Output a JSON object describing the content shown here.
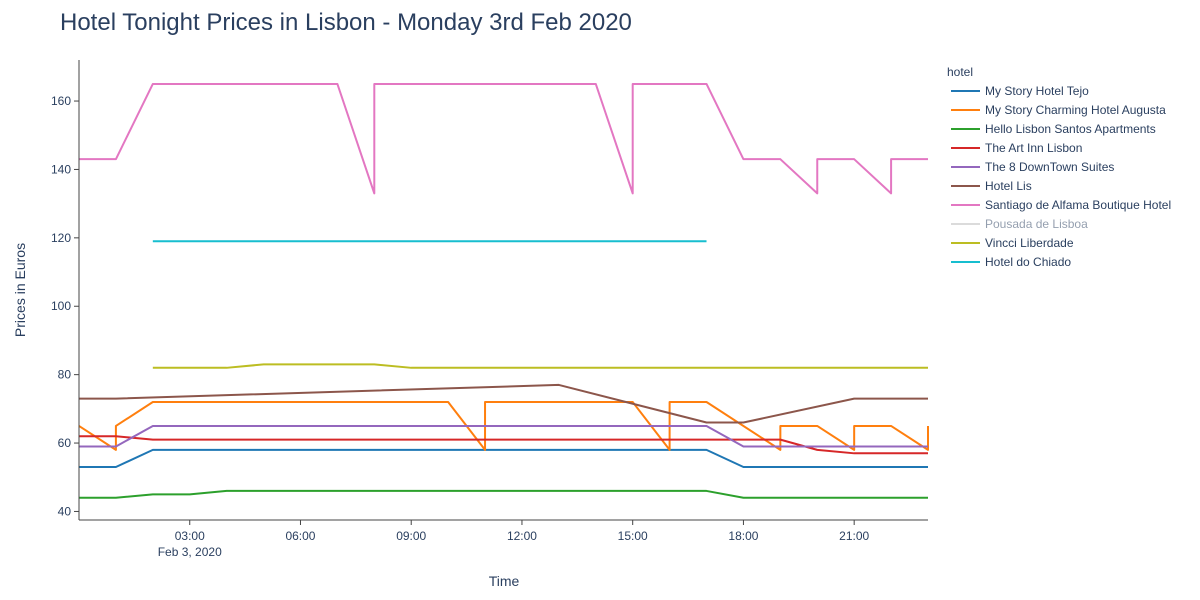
{
  "chart_data": {
    "type": "line",
    "title": "Hotel Tonight Prices in Lisbon - Monday 3rd Feb 2020",
    "xlabel": "Time",
    "ylabel": "Prices in Euros",
    "x_range": [
      "00:00",
      "23:00"
    ],
    "ylim": [
      37.5,
      172
    ],
    "x_ticks": [
      "03:00",
      "06:00",
      "09:00",
      "12:00",
      "15:00",
      "18:00",
      "21:00"
    ],
    "x_tick_hours": [
      3,
      6,
      9,
      12,
      15,
      18,
      21
    ],
    "x_date_label": "Feb 3, 2020",
    "y_ticks": [
      40,
      60,
      80,
      100,
      120,
      140,
      160
    ],
    "legend_title": "hotel",
    "legend_position": "right",
    "grid": false,
    "series": [
      {
        "name": "My Story Hotel Tejo",
        "color": "#1f77b4",
        "points": [
          [
            0,
            53
          ],
          [
            1,
            53
          ],
          [
            2,
            58
          ],
          [
            17,
            58
          ],
          [
            18,
            53
          ],
          [
            23,
            53
          ]
        ]
      },
      {
        "name": "My Story Charming Hotel Augusta",
        "color": "#ff7f0e",
        "points": [
          [
            0,
            65
          ],
          [
            1,
            58
          ],
          [
            1,
            65
          ],
          [
            2,
            72
          ],
          [
            10,
            72
          ],
          [
            11,
            58
          ],
          [
            11,
            72
          ],
          [
            15,
            72
          ],
          [
            16,
            58
          ],
          [
            16,
            72
          ],
          [
            17,
            72
          ],
          [
            19,
            58
          ],
          [
            19,
            65
          ],
          [
            20,
            65
          ],
          [
            21,
            58
          ],
          [
            21,
            65
          ],
          [
            22,
            65
          ],
          [
            23,
            58
          ],
          [
            23,
            65
          ]
        ]
      },
      {
        "name": "Hello Lisbon Santos Apartments",
        "color": "#2ca02c",
        "points": [
          [
            0,
            44
          ],
          [
            1,
            44
          ],
          [
            2,
            45
          ],
          [
            3,
            45
          ],
          [
            4,
            46
          ],
          [
            17,
            46
          ],
          [
            18,
            44
          ],
          [
            23,
            44
          ]
        ]
      },
      {
        "name": "The Art Inn Lisbon",
        "color": "#d62728",
        "points": [
          [
            0,
            62
          ],
          [
            1,
            62
          ],
          [
            2,
            61
          ],
          [
            19,
            61
          ],
          [
            20,
            58
          ],
          [
            21,
            57
          ],
          [
            23,
            57
          ]
        ]
      },
      {
        "name": "The 8 DownTown Suites",
        "color": "#9467bd",
        "points": [
          [
            0,
            59
          ],
          [
            1,
            59
          ],
          [
            2,
            65
          ],
          [
            17,
            65
          ],
          [
            18,
            59
          ],
          [
            23,
            59
          ]
        ]
      },
      {
        "name": "Hotel Lis",
        "color": "#8c564b",
        "points": [
          [
            0,
            73
          ],
          [
            1,
            73
          ],
          [
            13,
            77
          ],
          [
            17,
            66
          ],
          [
            18,
            66
          ],
          [
            21,
            73
          ],
          [
            23,
            73
          ]
        ]
      },
      {
        "name": "Santiago de Alfama Boutique Hotel",
        "color": "#e377c2",
        "points": [
          [
            0,
            143
          ],
          [
            1,
            143
          ],
          [
            2,
            165
          ],
          [
            7,
            165
          ],
          [
            8,
            133
          ],
          [
            8,
            165
          ],
          [
            14,
            165
          ],
          [
            15,
            133
          ],
          [
            15,
            165
          ],
          [
            17,
            165
          ],
          [
            18,
            143
          ],
          [
            19,
            143
          ],
          [
            20,
            133
          ],
          [
            20,
            143
          ],
          [
            21,
            143
          ],
          [
            22,
            133
          ],
          [
            22,
            143
          ],
          [
            23,
            143
          ]
        ]
      },
      {
        "name": "Pousada de Lisboa",
        "color": "#b8b8b8",
        "legendonly": true,
        "points": []
      },
      {
        "name": "Vincci Liberdade",
        "color": "#bcbd22",
        "points": [
          [
            2,
            82
          ],
          [
            4,
            82
          ],
          [
            5,
            83
          ],
          [
            8,
            83
          ],
          [
            9,
            82
          ],
          [
            23,
            82
          ]
        ]
      },
      {
        "name": "Hotel do Chiado",
        "color": "#17becf",
        "points": [
          [
            2,
            119
          ],
          [
            17,
            119
          ]
        ]
      }
    ]
  }
}
